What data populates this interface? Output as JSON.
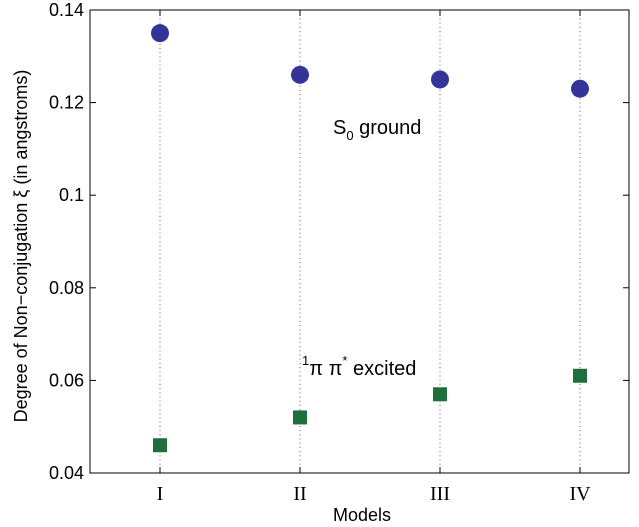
{
  "chart_data": {
    "type": "scatter",
    "categories": [
      "I",
      "II",
      "III",
      "IV"
    ],
    "xlabel": "Models",
    "ylabel": "Degree of Non−conjugation  ξ (in angstroms)",
    "ylim": [
      0.04,
      0.14
    ],
    "yticks": [
      "0.04",
      "0.06",
      "0.08",
      "0.1",
      "0.12",
      "0.14"
    ],
    "grid": "vertical dotted lines at each model",
    "series": [
      {
        "values": [
          0.135,
          0.126,
          0.125,
          0.123
        ],
        "color": "#33339a",
        "marker": "circle"
      },
      {
        "values": [
          0.046,
          0.052,
          0.057,
          0.061
        ],
        "color": "#1e6e3e",
        "marker": "square"
      }
    ],
    "annotations": {
      "ground": {
        "main": "S",
        "sub": "0",
        "rest": " ground"
      },
      "excited": {
        "sup1": "1",
        "pi1": "π π",
        "sup2": "*",
        "rest": " excited"
      }
    }
  }
}
